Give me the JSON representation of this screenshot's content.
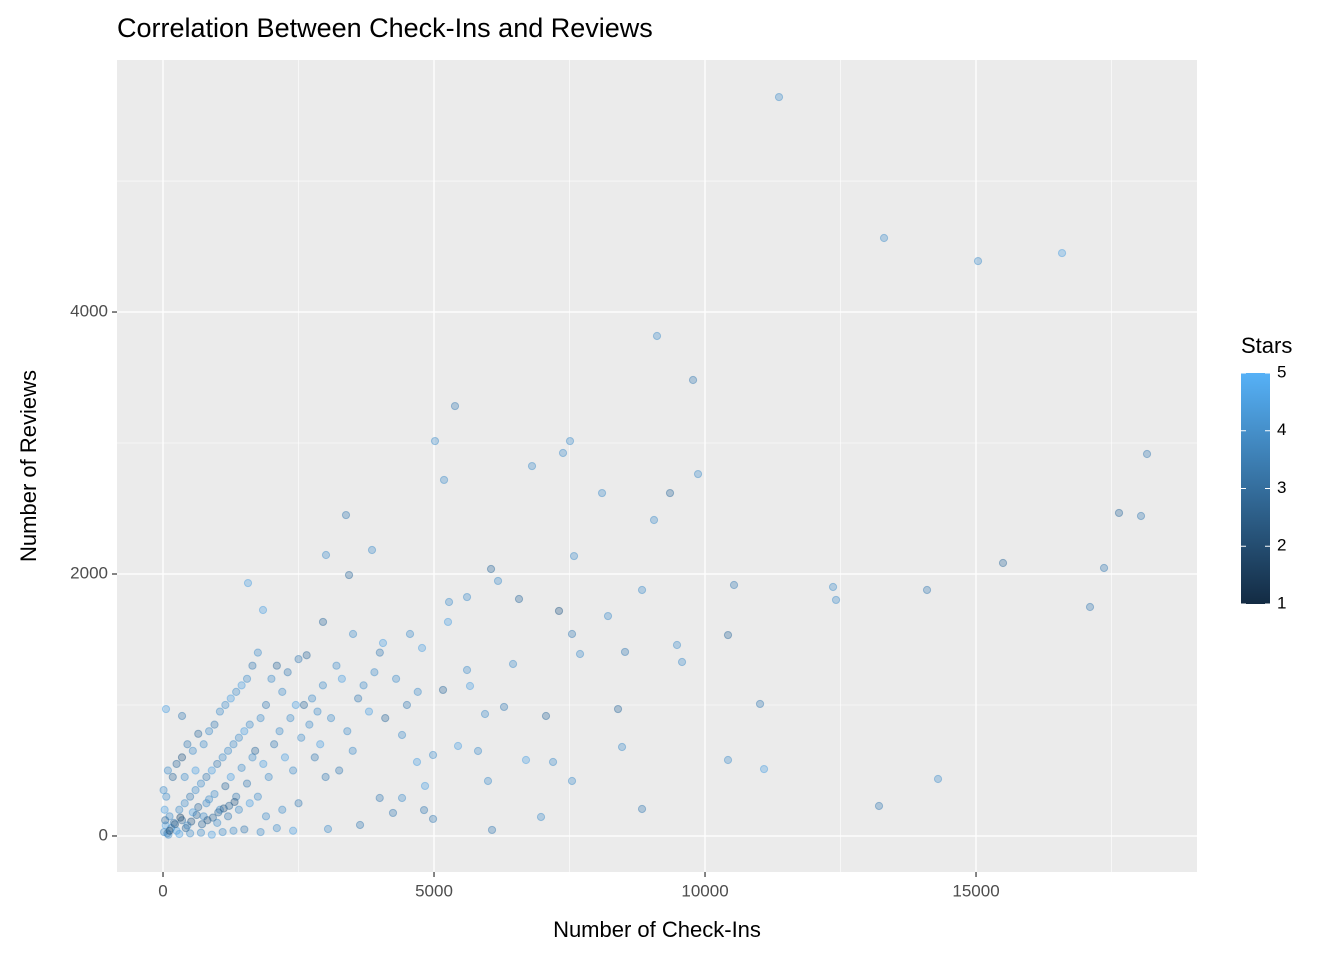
{
  "chart_data": {
    "type": "scatter",
    "title": "Correlation Between Check-Ins and Reviews",
    "x_label": "Number of Check-Ins",
    "y_label": "Number of Reviews",
    "xlim": [
      -849,
      19077
    ],
    "ylim": [
      -275,
      5924
    ],
    "xticks": [
      0,
      5000,
      10000,
      15000
    ],
    "yticks": [
      0,
      2000,
      4000
    ],
    "x_minor_ticks": [
      2500,
      7500,
      12500,
      17500
    ],
    "y_minor_ticks": [
      1000,
      3000,
      5000
    ],
    "grid": true,
    "panel_color": "#EBEBEB",
    "legend": {
      "title": "Stars",
      "position": "right",
      "limits": [
        1,
        5
      ],
      "ticks": [
        1,
        2,
        3,
        4,
        5
      ],
      "low_color": "#132B43",
      "high_color": "#56B1F7"
    },
    "points": [
      {
        "x": 11365,
        "y": 5641,
        "stars": 4
      },
      {
        "x": 13303,
        "y": 4565,
        "stars": 4
      },
      {
        "x": 15037,
        "y": 4389,
        "stars": 4
      },
      {
        "x": 16587,
        "y": 4450,
        "stars": 4.5
      },
      {
        "x": 9114,
        "y": 3817,
        "stars": 4
      },
      {
        "x": 9779,
        "y": 3481,
        "stars": 3.5
      },
      {
        "x": 5387,
        "y": 3282,
        "stars": 3.5
      },
      {
        "x": 5018,
        "y": 3015,
        "stars": 4
      },
      {
        "x": 7509,
        "y": 3015,
        "stars": 4
      },
      {
        "x": 7380,
        "y": 2924,
        "stars": 4
      },
      {
        "x": 9871,
        "y": 2763,
        "stars": 4
      },
      {
        "x": 6808,
        "y": 2824,
        "stars": 4
      },
      {
        "x": 5185,
        "y": 2718,
        "stars": 4
      },
      {
        "x": 18155,
        "y": 2916,
        "stars": 3.5
      },
      {
        "x": 17638,
        "y": 2466,
        "stars": 3
      },
      {
        "x": 18044,
        "y": 2443,
        "stars": 3.5
      },
      {
        "x": 8100,
        "y": 2618,
        "stars": 4
      },
      {
        "x": 9354,
        "y": 2618,
        "stars": 3
      },
      {
        "x": 9059,
        "y": 2412,
        "stars": 4
      },
      {
        "x": 3376,
        "y": 2450,
        "stars": 3.5
      },
      {
        "x": 3007,
        "y": 2145,
        "stars": 4
      },
      {
        "x": 3856,
        "y": 2183,
        "stars": 4
      },
      {
        "x": 3432,
        "y": 1992,
        "stars": 3
      },
      {
        "x": 7583,
        "y": 2137,
        "stars": 4
      },
      {
        "x": 6052,
        "y": 2038,
        "stars": 3
      },
      {
        "x": 6181,
        "y": 1947,
        "stars": 4
      },
      {
        "x": 15498,
        "y": 2084,
        "stars": 3
      },
      {
        "x": 17362,
        "y": 2046,
        "stars": 3.5
      },
      {
        "x": 10535,
        "y": 1916,
        "stars": 3.5
      },
      {
        "x": 12362,
        "y": 1901,
        "stars": 4
      },
      {
        "x": 12417,
        "y": 1802,
        "stars": 4
      },
      {
        "x": 14096,
        "y": 1878,
        "stars": 3.5
      },
      {
        "x": 17103,
        "y": 1748,
        "stars": 3.5
      },
      {
        "x": 8838,
        "y": 1878,
        "stars": 4
      },
      {
        "x": 6568,
        "y": 1809,
        "stars": 3
      },
      {
        "x": 5609,
        "y": 1824,
        "stars": 4
      },
      {
        "x": 5277,
        "y": 1786,
        "stars": 4
      },
      {
        "x": 7306,
        "y": 1718,
        "stars": 2.5
      },
      {
        "x": 8210,
        "y": 1679,
        "stars": 4
      },
      {
        "x": 1568,
        "y": 1931,
        "stars": 4.5
      },
      {
        "x": 1845,
        "y": 1725,
        "stars": 4.5
      },
      {
        "x": 5258,
        "y": 1634,
        "stars": 4.5
      },
      {
        "x": 7546,
        "y": 1542,
        "stars": 3.5
      },
      {
        "x": 7694,
        "y": 1389,
        "stars": 4
      },
      {
        "x": 8524,
        "y": 1405,
        "stars": 3.5
      },
      {
        "x": 10424,
        "y": 1534,
        "stars": 3
      },
      {
        "x": 9483,
        "y": 1458,
        "stars": 4
      },
      {
        "x": 9576,
        "y": 1328,
        "stars": 4
      },
      {
        "x": 6458,
        "y": 1313,
        "stars": 4
      },
      {
        "x": 5609,
        "y": 1267,
        "stars": 4
      },
      {
        "x": 5664,
        "y": 1145,
        "stars": 4.5
      },
      {
        "x": 5166,
        "y": 1115,
        "stars": 3
      },
      {
        "x": 6292,
        "y": 985,
        "stars": 3.5
      },
      {
        "x": 8395,
        "y": 969,
        "stars": 3
      },
      {
        "x": 11015,
        "y": 1008,
        "stars": 3.5
      },
      {
        "x": 5941,
        "y": 931,
        "stars": 4
      },
      {
        "x": 7066,
        "y": 916,
        "stars": 3
      },
      {
        "x": 4557,
        "y": 1542,
        "stars": 4
      },
      {
        "x": 4779,
        "y": 1435,
        "stars": 4.5
      },
      {
        "x": 4059,
        "y": 1473,
        "stars": 4.5
      },
      {
        "x": 3506,
        "y": 1542,
        "stars": 4
      },
      {
        "x": 2952,
        "y": 1634,
        "stars": 3
      },
      {
        "x": 4410,
        "y": 771,
        "stars": 4
      },
      {
        "x": 4982,
        "y": 618,
        "stars": 4
      },
      {
        "x": 5443,
        "y": 687,
        "stars": 4.5
      },
      {
        "x": 5812,
        "y": 649,
        "stars": 4
      },
      {
        "x": 4686,
        "y": 565,
        "stars": 4.5
      },
      {
        "x": 6697,
        "y": 580,
        "stars": 4.5
      },
      {
        "x": 7196,
        "y": 565,
        "stars": 4
      },
      {
        "x": 8469,
        "y": 679,
        "stars": 4
      },
      {
        "x": 10424,
        "y": 580,
        "stars": 4
      },
      {
        "x": 11089,
        "y": 511,
        "stars": 4.5
      },
      {
        "x": 7546,
        "y": 420,
        "stars": 4
      },
      {
        "x": 5996,
        "y": 420,
        "stars": 4
      },
      {
        "x": 4834,
        "y": 382,
        "stars": 4.5
      },
      {
        "x": 4410,
        "y": 290,
        "stars": 4
      },
      {
        "x": 3998,
        "y": 290,
        "stars": 3.5
      },
      {
        "x": 4243,
        "y": 176,
        "stars": 3.5
      },
      {
        "x": 4816,
        "y": 198,
        "stars": 3.5
      },
      {
        "x": 4982,
        "y": 130,
        "stars": 3.5
      },
      {
        "x": 6974,
        "y": 145,
        "stars": 4
      },
      {
        "x": 8838,
        "y": 206,
        "stars": 3.5
      },
      {
        "x": 13210,
        "y": 229,
        "stars": 3.5
      },
      {
        "x": 14299,
        "y": 435,
        "stars": 4
      },
      {
        "x": 6070,
        "y": 46,
        "stars": 3.5
      },
      {
        "x": 55,
        "y": 969,
        "stars": 4.5
      },
      {
        "x": 351,
        "y": 916,
        "stars": 3.5
      },
      {
        "x": 3044,
        "y": 53,
        "stars": 4
      },
      {
        "x": 3635,
        "y": 84,
        "stars": 3.5
      },
      {
        "x": 20,
        "y": 30,
        "stars": 4
      },
      {
        "x": 50,
        "y": 80,
        "stars": 4.5
      },
      {
        "x": 80,
        "y": 20,
        "stars": 3.5
      },
      {
        "x": 120,
        "y": 150,
        "stars": 4
      },
      {
        "x": 150,
        "y": 60,
        "stars": 4
      },
      {
        "x": 200,
        "y": 100,
        "stars": 3.5
      },
      {
        "x": 250,
        "y": 40,
        "stars": 4.5
      },
      {
        "x": 300,
        "y": 200,
        "stars": 4
      },
      {
        "x": 350,
        "y": 120,
        "stars": 3
      },
      {
        "x": 400,
        "y": 250,
        "stars": 4
      },
      {
        "x": 450,
        "y": 80,
        "stars": 4
      },
      {
        "x": 500,
        "y": 300,
        "stars": 3.5
      },
      {
        "x": 550,
        "y": 180,
        "stars": 4.5
      },
      {
        "x": 600,
        "y": 350,
        "stars": 4
      },
      {
        "x": 650,
        "y": 220,
        "stars": 3
      },
      {
        "x": 700,
        "y": 400,
        "stars": 4
      },
      {
        "x": 750,
        "y": 150,
        "stars": 4
      },
      {
        "x": 800,
        "y": 450,
        "stars": 3.5
      },
      {
        "x": 850,
        "y": 280,
        "stars": 4
      },
      {
        "x": 900,
        "y": 500,
        "stars": 4.5
      },
      {
        "x": 950,
        "y": 320,
        "stars": 4
      },
      {
        "x": 1000,
        "y": 550,
        "stars": 3.5
      },
      {
        "x": 1050,
        "y": 200,
        "stars": 4
      },
      {
        "x": 1100,
        "y": 600,
        "stars": 4
      },
      {
        "x": 1150,
        "y": 380,
        "stars": 3
      },
      {
        "x": 1200,
        "y": 650,
        "stars": 4
      },
      {
        "x": 1250,
        "y": 450,
        "stars": 4.5
      },
      {
        "x": 1300,
        "y": 700,
        "stars": 4
      },
      {
        "x": 1350,
        "y": 300,
        "stars": 3.5
      },
      {
        "x": 1400,
        "y": 750,
        "stars": 4
      },
      {
        "x": 1450,
        "y": 520,
        "stars": 4
      },
      {
        "x": 1500,
        "y": 800,
        "stars": 4.5
      },
      {
        "x": 1550,
        "y": 400,
        "stars": 3.5
      },
      {
        "x": 1600,
        "y": 850,
        "stars": 4
      },
      {
        "x": 1650,
        "y": 600,
        "stars": 4
      },
      {
        "x": 1700,
        "y": 650,
        "stars": 3
      },
      {
        "x": 1750,
        "y": 300,
        "stars": 4
      },
      {
        "x": 1800,
        "y": 900,
        "stars": 4
      },
      {
        "x": 1850,
        "y": 550,
        "stars": 4.5
      },
      {
        "x": 1900,
        "y": 1000,
        "stars": 3.5
      },
      {
        "x": 1950,
        "y": 450,
        "stars": 4
      },
      {
        "x": 2000,
        "y": 1200,
        "stars": 4
      },
      {
        "x": 2050,
        "y": 700,
        "stars": 3.5
      },
      {
        "x": 2100,
        "y": 1300,
        "stars": 3
      },
      {
        "x": 2150,
        "y": 800,
        "stars": 4
      },
      {
        "x": 2200,
        "y": 1100,
        "stars": 4
      },
      {
        "x": 2250,
        "y": 600,
        "stars": 4.5
      },
      {
        "x": 2300,
        "y": 1250,
        "stars": 3.5
      },
      {
        "x": 2350,
        "y": 900,
        "stars": 4
      },
      {
        "x": 2400,
        "y": 500,
        "stars": 4
      },
      {
        "x": 2450,
        "y": 1000,
        "stars": 4.5
      },
      {
        "x": 2500,
        "y": 1350,
        "stars": 3.5
      },
      {
        "x": 2550,
        "y": 750,
        "stars": 4
      },
      {
        "x": 2600,
        "y": 1000,
        "stars": 3
      },
      {
        "x": 2650,
        "y": 1380,
        "stars": 3
      },
      {
        "x": 2700,
        "y": 850,
        "stars": 4
      },
      {
        "x": 2750,
        "y": 1050,
        "stars": 4
      },
      {
        "x": 2800,
        "y": 600,
        "stars": 3.5
      },
      {
        "x": 2850,
        "y": 950,
        "stars": 4
      },
      {
        "x": 2900,
        "y": 700,
        "stars": 4.5
      },
      {
        "x": 2950,
        "y": 1150,
        "stars": 4
      },
      {
        "x": 3000,
        "y": 450,
        "stars": 3.5
      },
      {
        "x": 3100,
        "y": 900,
        "stars": 4
      },
      {
        "x": 3200,
        "y": 1300,
        "stars": 4
      },
      {
        "x": 3250,
        "y": 500,
        "stars": 3.5
      },
      {
        "x": 3300,
        "y": 1200,
        "stars": 4.5
      },
      {
        "x": 3400,
        "y": 800,
        "stars": 4
      },
      {
        "x": 3500,
        "y": 650,
        "stars": 4
      },
      {
        "x": 3600,
        "y": 1050,
        "stars": 3.5
      },
      {
        "x": 3700,
        "y": 1150,
        "stars": 4
      },
      {
        "x": 3800,
        "y": 950,
        "stars": 4.5
      },
      {
        "x": 3900,
        "y": 1250,
        "stars": 4
      },
      {
        "x": 4000,
        "y": 1400,
        "stars": 3.5
      },
      {
        "x": 4100,
        "y": 900,
        "stars": 3
      },
      {
        "x": 4300,
        "y": 1200,
        "stars": 4
      },
      {
        "x": 4500,
        "y": 1000,
        "stars": 3.5
      },
      {
        "x": 4700,
        "y": 1100,
        "stars": 4
      },
      {
        "x": 100,
        "y": 10,
        "stars": 4
      },
      {
        "x": 300,
        "y": 15,
        "stars": 4.5
      },
      {
        "x": 500,
        "y": 20,
        "stars": 4
      },
      {
        "x": 700,
        "y": 25,
        "stars": 4
      },
      {
        "x": 900,
        "y": 10,
        "stars": 4.5
      },
      {
        "x": 1100,
        "y": 30,
        "stars": 4
      },
      {
        "x": 1300,
        "y": 40,
        "stars": 4
      },
      {
        "x": 1500,
        "y": 50,
        "stars": 3.5
      },
      {
        "x": 1800,
        "y": 30,
        "stars": 4
      },
      {
        "x": 2100,
        "y": 60,
        "stars": 4
      },
      {
        "x": 2400,
        "y": 40,
        "stars": 4.5
      },
      {
        "x": 60,
        "y": 300,
        "stars": 4
      },
      {
        "x": 30,
        "y": 200,
        "stars": 4.5
      },
      {
        "x": 10,
        "y": 350,
        "stars": 4
      },
      {
        "x": 90,
        "y": 500,
        "stars": 4
      },
      {
        "x": 40,
        "y": 120,
        "stars": 3
      },
      {
        "x": 180,
        "y": 450,
        "stars": 3
      },
      {
        "x": 250,
        "y": 550,
        "stars": 3
      },
      {
        "x": 350,
        "y": 600,
        "stars": 2.5
      },
      {
        "x": 450,
        "y": 700,
        "stars": 3.5
      },
      {
        "x": 550,
        "y": 650,
        "stars": 4
      },
      {
        "x": 650,
        "y": 780,
        "stars": 3
      },
      {
        "x": 750,
        "y": 700,
        "stars": 4
      },
      {
        "x": 850,
        "y": 800,
        "stars": 4
      },
      {
        "x": 950,
        "y": 850,
        "stars": 3.5
      },
      {
        "x": 1050,
        "y": 950,
        "stars": 4
      },
      {
        "x": 1150,
        "y": 1000,
        "stars": 4
      },
      {
        "x": 1250,
        "y": 1050,
        "stars": 4.5
      },
      {
        "x": 1350,
        "y": 1100,
        "stars": 4
      },
      {
        "x": 1450,
        "y": 1150,
        "stars": 4.5
      },
      {
        "x": 1550,
        "y": 1200,
        "stars": 4
      },
      {
        "x": 1650,
        "y": 1300,
        "stars": 3.5
      },
      {
        "x": 1750,
        "y": 1400,
        "stars": 4
      },
      {
        "x": 400,
        "y": 450,
        "stars": 4
      },
      {
        "x": 600,
        "y": 500,
        "stars": 4.5
      },
      {
        "x": 800,
        "y": 250,
        "stars": 4
      },
      {
        "x": 1000,
        "y": 100,
        "stars": 4
      },
      {
        "x": 1200,
        "y": 150,
        "stars": 3.5
      },
      {
        "x": 1400,
        "y": 200,
        "stars": 4
      },
      {
        "x": 1600,
        "y": 250,
        "stars": 4.5
      },
      {
        "x": 1900,
        "y": 150,
        "stars": 4
      },
      {
        "x": 2200,
        "y": 200,
        "stars": 4
      },
      {
        "x": 2500,
        "y": 250,
        "stars": 3.5
      },
      {
        "x": 120,
        "y": 40,
        "stars": 2
      },
      {
        "x": 220,
        "y": 90,
        "stars": 2.5
      },
      {
        "x": 320,
        "y": 140,
        "stars": 2
      },
      {
        "x": 420,
        "y": 60,
        "stars": 3
      },
      {
        "x": 520,
        "y": 110,
        "stars": 2.5
      },
      {
        "x": 620,
        "y": 160,
        "stars": 3
      },
      {
        "x": 720,
        "y": 90,
        "stars": 3
      },
      {
        "x": 820,
        "y": 120,
        "stars": 2.5
      },
      {
        "x": 920,
        "y": 140,
        "stars": 3
      },
      {
        "x": 1020,
        "y": 180,
        "stars": 3
      },
      {
        "x": 1120,
        "y": 210,
        "stars": 2.5
      },
      {
        "x": 1220,
        "y": 230,
        "stars": 3
      },
      {
        "x": 1320,
        "y": 260,
        "stars": 2.5
      }
    ]
  }
}
